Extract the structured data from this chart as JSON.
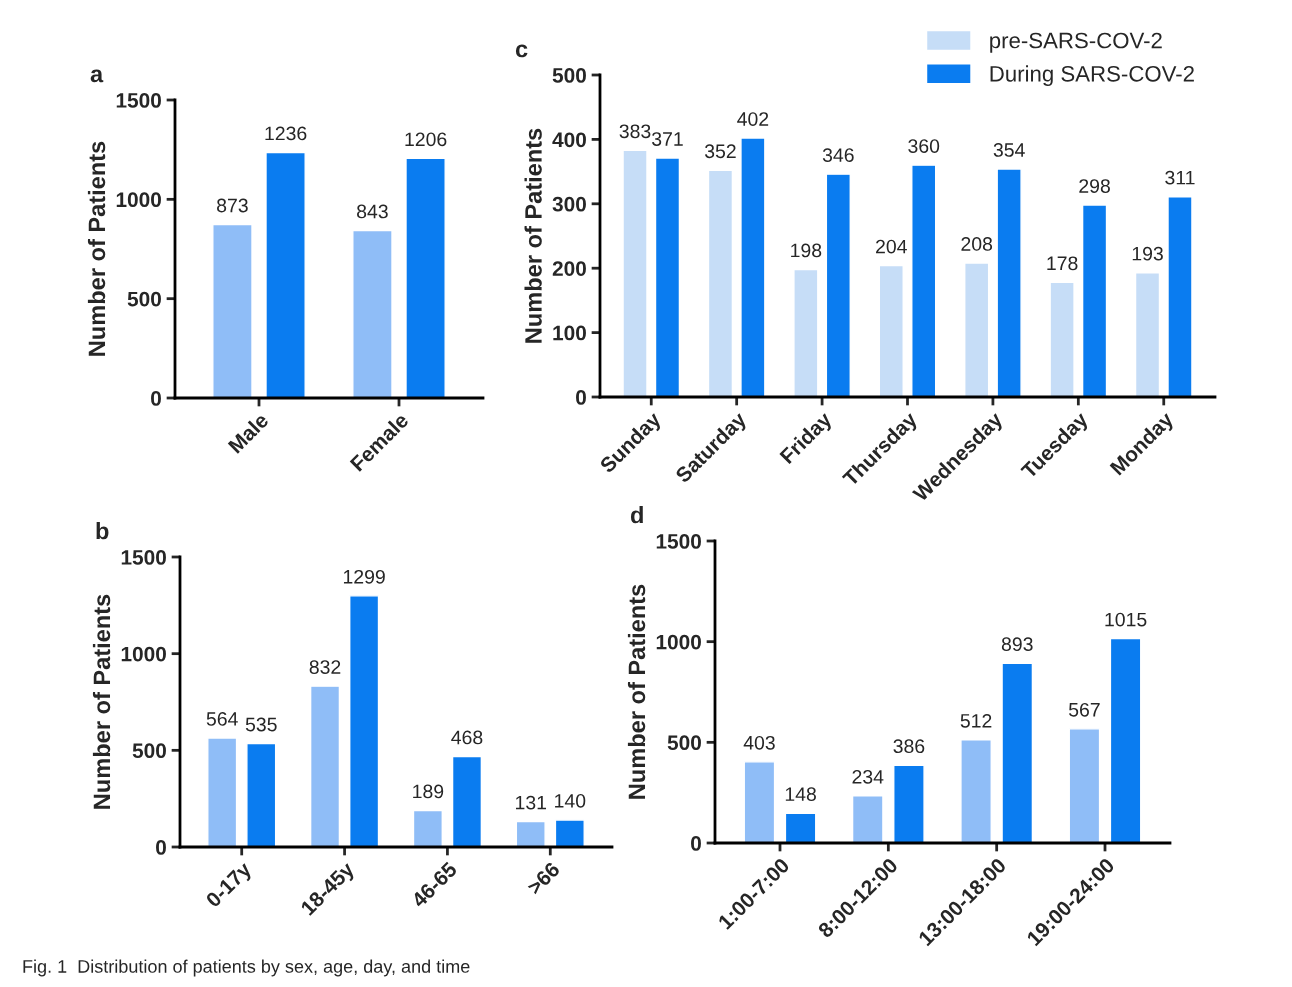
{
  "chart_data": [
    {
      "type": "bar",
      "title": "a",
      "ylabel": "Number of Patients",
      "categories": [
        "Male",
        "Female"
      ],
      "series": [
        {
          "color": "#8fbdf7",
          "values": [
            873,
            843
          ]
        },
        {
          "color": "#0a7cf0",
          "values": [
            1236,
            1206
          ]
        }
      ],
      "ylim": [
        0,
        1500
      ],
      "yticks": [
        0,
        500,
        1000,
        1500
      ],
      "data_labels": true,
      "grid": false,
      "annotations": [
        "Fig. 1  Distribution of patients by sex, age, day, and time"
      ]
    },
    {
      "type": "bar",
      "title": "c",
      "ylabel": "Number of Patients",
      "categories": [
        "Sunday",
        "Saturday",
        "Friday",
        "Thursday",
        "Wednesday",
        "Tuesday",
        "Monday"
      ],
      "series": [
        {
          "name": "pre-SARS-COV-2",
          "color": "#c6ddf7",
          "values": [
            383,
            352,
            198,
            204,
            208,
            178,
            193
          ]
        },
        {
          "name": "During SARS-COV-2",
          "color": "#0a7cf0",
          "values": [
            371,
            402,
            346,
            360,
            354,
            298,
            311
          ]
        }
      ],
      "ylim": [
        0,
        500
      ],
      "yticks": [
        0,
        100,
        200,
        300,
        400,
        500
      ],
      "data_labels": true,
      "grid": false,
      "legend": "top right"
    },
    {
      "type": "bar",
      "title": "b",
      "ylabel": "Number of Patients",
      "categories": [
        "0-17y",
        "18-45y",
        "46-65",
        ">66"
      ],
      "series": [
        {
          "color": "#8fbdf7",
          "values": [
            564,
            832,
            189,
            131
          ]
        },
        {
          "color": "#0a7cf0",
          "values": [
            535,
            1299,
            468,
            140
          ]
        }
      ],
      "ylim": [
        0,
        1500
      ],
      "yticks": [
        0,
        500,
        1000,
        1500
      ],
      "data_labels": true,
      "grid": false
    },
    {
      "type": "bar",
      "title": "d",
      "ylabel": "Number of Patients",
      "categories": [
        "1:00-7:00",
        "8:00-12:00",
        "13:00-18:00",
        "19:00-24:00"
      ],
      "series": [
        {
          "color": "#8fbdf7",
          "values": [
            403,
            234,
            512,
            567
          ]
        },
        {
          "color": "#0a7cf0",
          "values": [
            148,
            386,
            893,
            1015
          ]
        }
      ],
      "ylim": [
        0,
        1500
      ],
      "yticks": [
        0,
        500,
        1000,
        1500
      ],
      "data_labels": true,
      "grid": false
    }
  ]
}
